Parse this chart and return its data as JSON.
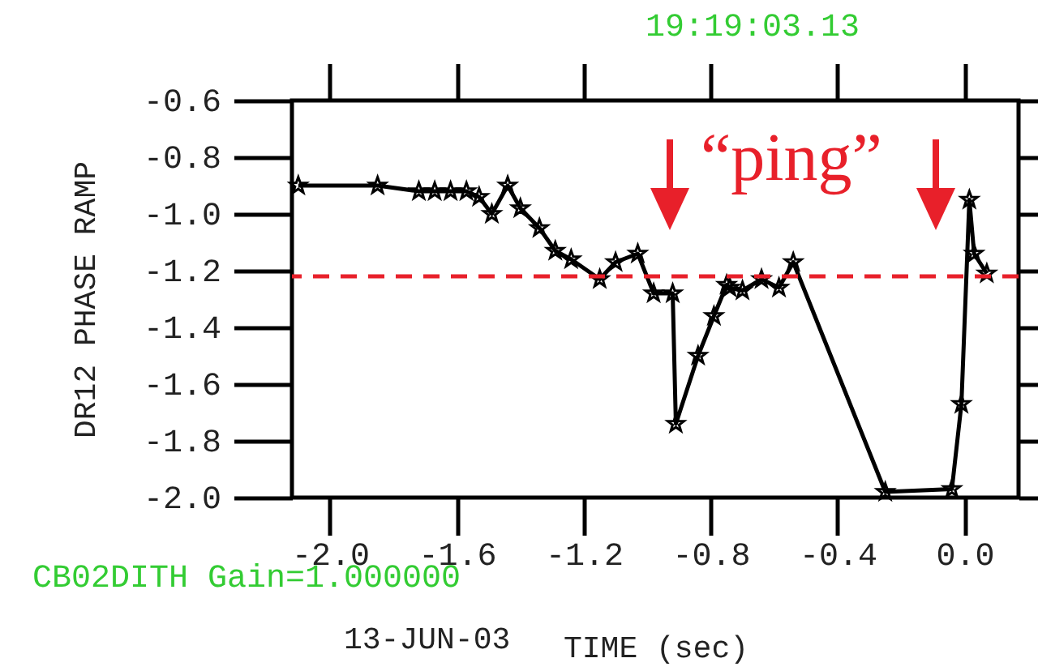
{
  "chart_data": {
    "type": "line",
    "ylabel": "DR12  PHASE RAMP",
    "xlabel": "TIME (sec)",
    "annotations": [
      "19:19:03.13",
      "CB02DITH Gain=1.000000",
      "13-JUN-03",
      "“ping”"
    ],
    "x": [
      -2.1,
      -1.85,
      -1.72,
      -1.67,
      -1.62,
      -1.57,
      -1.53,
      -1.49,
      -1.44,
      -1.4,
      -1.34,
      -1.29,
      -1.24,
      -1.15,
      -1.1,
      -1.03,
      -0.98,
      -0.92,
      -0.91,
      -0.84,
      -0.79,
      -0.75,
      -0.74,
      -0.7,
      -0.64,
      -0.585,
      -0.54,
      -0.25,
      -0.04,
      -0.01,
      0.015,
      0.03,
      0.07
    ],
    "series": [
      {
        "color": "#000000",
        "values": [
          -0.9,
          -0.9,
          -0.92,
          -0.92,
          -0.92,
          -0.92,
          -0.94,
          -1.0,
          -0.9,
          -0.98,
          -1.05,
          -1.13,
          -1.16,
          -1.23,
          -1.17,
          -1.14,
          -1.28,
          -1.28,
          -1.74,
          -1.5,
          -1.36,
          -1.25,
          -1.26,
          -1.27,
          -1.23,
          -1.26,
          -1.17,
          -1.98,
          -1.97,
          -1.67,
          -0.95,
          -1.14,
          -1.21
        ]
      }
    ],
    "xlim": [
      -2.12,
      0.17
    ],
    "ylim": [
      -2.0,
      -0.6
    ],
    "xticks": [
      {
        "value": -2,
        "label": "-2.0"
      },
      {
        "value": -1.6,
        "label": "-1.6"
      },
      {
        "value": -1.2,
        "label": "-1.2"
      },
      {
        "value": -0.8,
        "label": "-0.8"
      },
      {
        "value": -0.4,
        "label": "-0.4"
      },
      {
        "value": 0,
        "label": "0.0"
      }
    ],
    "yticks": [
      {
        "value": -0.6,
        "label": "-0.6"
      },
      {
        "value": -0.8,
        "label": "-0.8"
      },
      {
        "value": -1,
        "label": "-1.0"
      },
      {
        "value": -1.2,
        "label": "-1.2"
      },
      {
        "value": -1.4,
        "label": "-1.4"
      },
      {
        "value": -1.6,
        "label": "-1.6"
      },
      {
        "value": -1.8,
        "label": "-1.8"
      },
      {
        "value": -2,
        "label": "-2.0"
      }
    ],
    "ref_lines": [
      {
        "axis": "y",
        "value": -1.22,
        "color": "#e8202a",
        "line_style": "dashed"
      }
    ],
    "grid": false,
    "legend": false,
    "marker": "star",
    "line_style": "solid"
  }
}
